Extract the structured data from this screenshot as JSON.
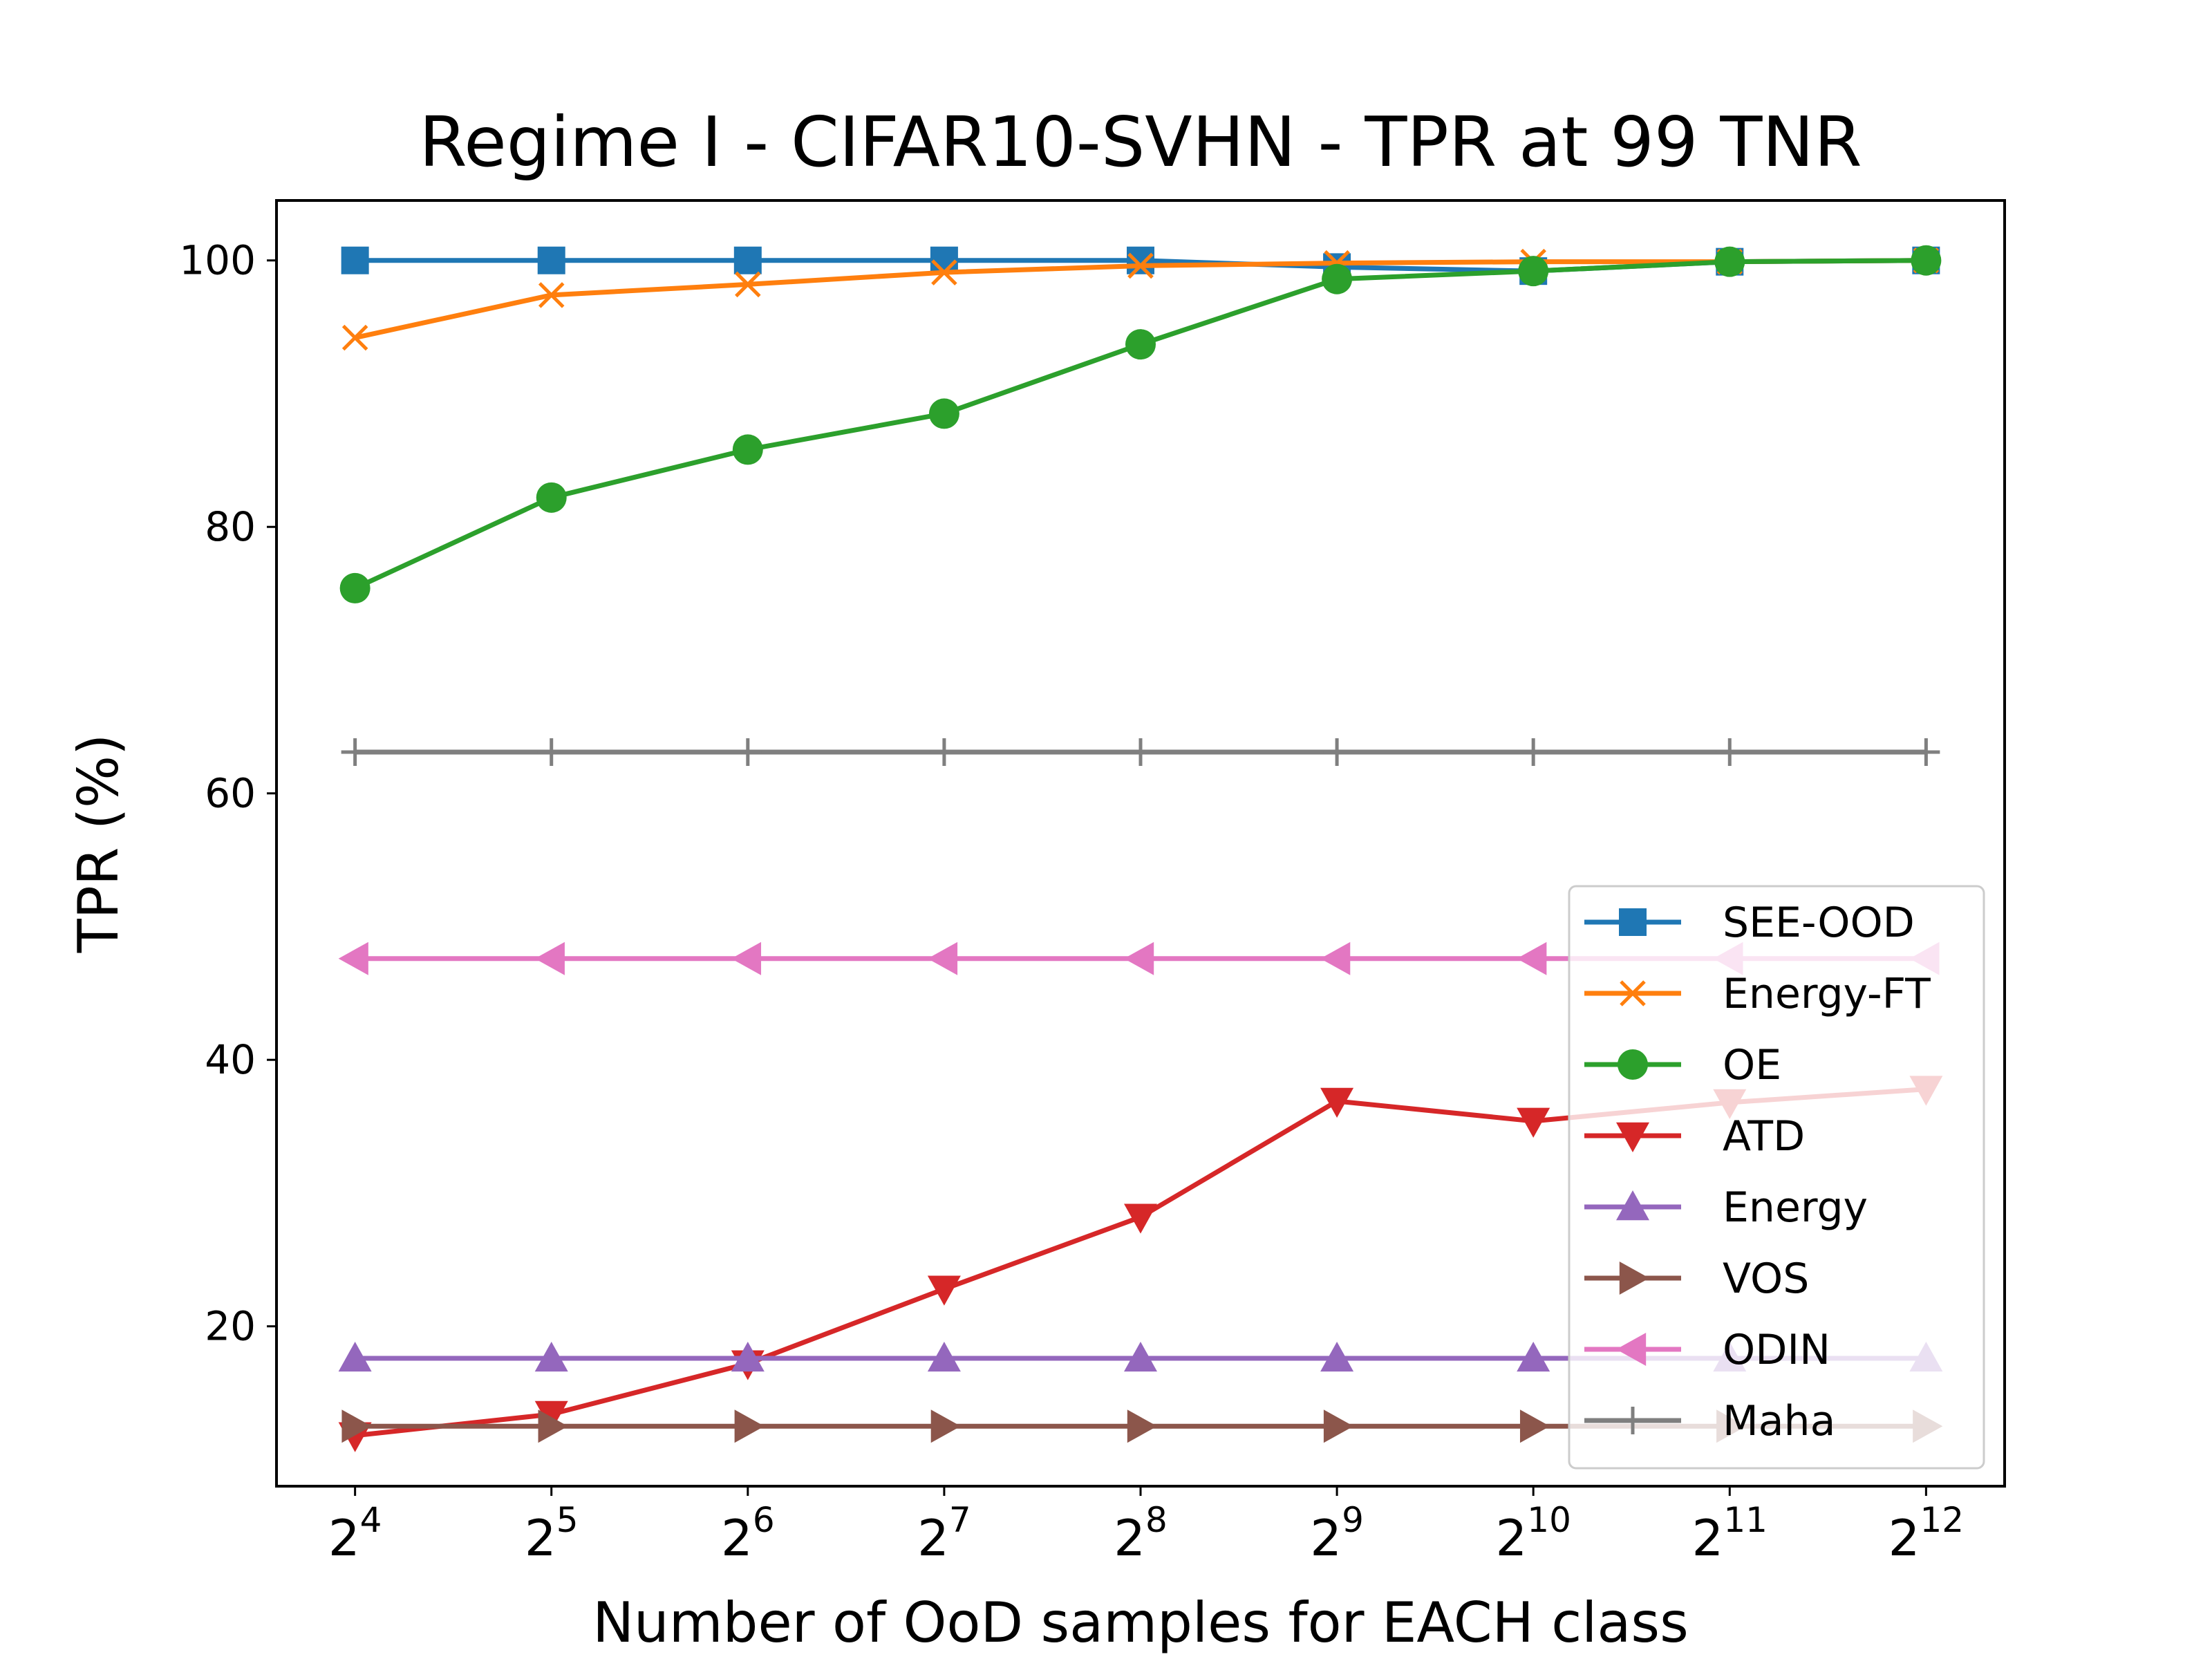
{
  "chart_data": {
    "type": "line",
    "title": "Regime I - CIFAR10-SVHN - TPR at 99 TNR",
    "xlabel": "Number of OoD samples for EACH class",
    "ylabel": "TPR (%)",
    "x": [
      4,
      5,
      6,
      7,
      8,
      9,
      10,
      11,
      12
    ],
    "x_tick_labels": [
      {
        "base": "2",
        "exp": "4"
      },
      {
        "base": "2",
        "exp": "5"
      },
      {
        "base": "2",
        "exp": "6"
      },
      {
        "base": "2",
        "exp": "7"
      },
      {
        "base": "2",
        "exp": "8"
      },
      {
        "base": "2",
        "exp": "9"
      },
      {
        "base": "2",
        "exp": "10"
      },
      {
        "base": "2",
        "exp": "11"
      },
      {
        "base": "2",
        "exp": "12"
      }
    ],
    "x_scale": "log2",
    "xlim": [
      3.6,
      12.4
    ],
    "ylim": [
      8,
      104.5
    ],
    "y_ticks": [
      20,
      40,
      60,
      80,
      100
    ],
    "grid": false,
    "legend_position": "lower-right",
    "series": [
      {
        "name": "SEE-OOD",
        "color": "#1f77b4",
        "marker": "square",
        "values": [
          100,
          100,
          100,
          100,
          100,
          99.5,
          99.2,
          99.9,
          100
        ]
      },
      {
        "name": "Energy-FT",
        "color": "#ff7f0e",
        "marker": "x",
        "values": [
          94.2,
          97.4,
          98.2,
          99.1,
          99.6,
          99.8,
          99.9,
          99.9,
          100
        ]
      },
      {
        "name": "OE",
        "color": "#2ca02c",
        "marker": "circle",
        "values": [
          75.4,
          82.2,
          85.8,
          88.5,
          93.7,
          98.6,
          99.2,
          99.9,
          100
        ]
      },
      {
        "name": "ATD",
        "color": "#d62728",
        "marker": "triangle-down",
        "values": [
          11.8,
          13.4,
          17.2,
          22.8,
          28.2,
          36.9,
          35.4,
          36.8,
          37.8
        ]
      },
      {
        "name": "Energy",
        "color": "#9467bd",
        "marker": "triangle-up",
        "values": [
          17.6,
          17.6,
          17.6,
          17.6,
          17.6,
          17.6,
          17.6,
          17.6,
          17.6
        ]
      },
      {
        "name": "VOS",
        "color": "#8c564b",
        "marker": "triangle-right",
        "values": [
          12.5,
          12.5,
          12.5,
          12.5,
          12.5,
          12.5,
          12.5,
          12.5,
          12.5
        ]
      },
      {
        "name": "ODIN",
        "color": "#e377c2",
        "marker": "triangle-left",
        "values": [
          47.6,
          47.6,
          47.6,
          47.6,
          47.6,
          47.6,
          47.6,
          47.6,
          47.6
        ]
      },
      {
        "name": "Maha",
        "color": "#7f7f7f",
        "marker": "plus",
        "values": [
          63.1,
          63.1,
          63.1,
          63.1,
          63.1,
          63.1,
          63.1,
          63.1,
          63.1
        ]
      }
    ]
  }
}
